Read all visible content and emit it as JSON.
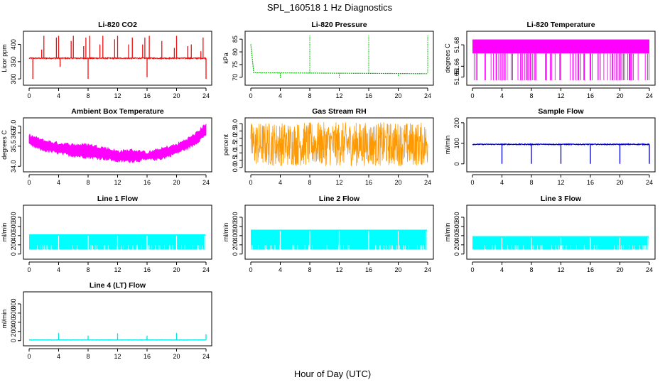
{
  "main_title": "SPL_160518  1 Hz Diagnostics",
  "xlabel": "Hour of Day (UTC)",
  "chart_data": [
    {
      "type": "line",
      "title": "Li-820 CO2",
      "ylabel": "Licor ppm",
      "xlim": [
        0,
        24
      ],
      "ylim": [
        290,
        430
      ],
      "yticks": [
        300,
        350,
        400
      ],
      "xticks": [
        0,
        4,
        8,
        12,
        16,
        20,
        24
      ],
      "color": "#ee1111",
      "series": [
        {
          "name": "",
          "baseline": 360,
          "noise": 3,
          "spikes": [
            [
              0.5,
              300
            ],
            [
              1.7,
              385
            ],
            [
              2,
              425
            ],
            [
              3.7,
              420
            ],
            [
              4,
              425
            ],
            [
              4.2,
              335
            ],
            [
              5.7,
              410
            ],
            [
              6,
              425
            ],
            [
              7.4,
              395
            ],
            [
              7.7,
              420
            ],
            [
              8,
              300
            ],
            [
              8.2,
              425
            ],
            [
              9.6,
              400
            ],
            [
              10,
              425
            ],
            [
              11.6,
              415
            ],
            [
              12,
              425
            ],
            [
              13.5,
              400
            ],
            [
              14,
              420
            ],
            [
              15.4,
              400
            ],
            [
              15.7,
              420
            ],
            [
              16,
              305
            ],
            [
              16.3,
              425
            ],
            [
              18,
              410
            ],
            [
              19.7,
              390
            ],
            [
              20,
              425
            ],
            [
              21.5,
              395
            ],
            [
              22,
              400
            ],
            [
              23.3,
              380
            ],
            [
              23.6,
              420
            ],
            [
              24,
              300
            ]
          ]
        }
      ]
    },
    {
      "type": "line",
      "title": "Li-820 Pressure",
      "ylabel": "kPa",
      "xlim": [
        0,
        24
      ],
      "ylim": [
        68,
        87
      ],
      "yticks": [
        70,
        75,
        80,
        85
      ],
      "xticks": [
        0,
        4,
        8,
        12,
        16,
        20,
        24
      ],
      "color": "#00bb00",
      "series": [
        {
          "name": "",
          "start": [
            0.0,
            83
          ],
          "trend": [
            [
              0.4,
              71.8
            ],
            [
              24,
              71.4
            ]
          ],
          "spikes": [
            [
              4,
              69.5
            ],
            [
              8,
              86.5
            ],
            [
              12,
              69.5
            ],
            [
              16,
              86.5
            ],
            [
              20,
              70.3
            ],
            [
              24,
              86.5
            ]
          ]
        }
      ]
    },
    {
      "type": "line",
      "title": "Li-820 Temperature",
      "ylabel": "degrees C",
      "xlim": [
        0,
        24
      ],
      "ylim": [
        51.645,
        51.69
      ],
      "yticks": [
        51.65,
        51.66,
        51.68
      ],
      "xticks": [
        0,
        4,
        8,
        12,
        16,
        20,
        24
      ],
      "color": "#ff00ff",
      "series": [
        {
          "name": "",
          "high": 51.685,
          "mid": 51.672,
          "low": 51.647
        }
      ]
    },
    {
      "type": "line",
      "title": "Ambient Box Temperature",
      "ylabel": "degrees C",
      "xlim": [
        0,
        24
      ],
      "ylim": [
        33.8,
        37.4
      ],
      "yticks": [
        34.0,
        35.5,
        36.5,
        37.0
      ],
      "ytick_labels": [
        "34.0",
        "35.5",
        "36.5",
        "37.0"
      ],
      "xticks": [
        0,
        4,
        8,
        12,
        16,
        20,
        24
      ],
      "color": "#ff00ff",
      "series": [
        {
          "name": "",
          "x": [
            0,
            2,
            4,
            6,
            8,
            10,
            12,
            14,
            16,
            18,
            20,
            22,
            23,
            24
          ],
          "upper": [
            36.3,
            35.9,
            35.7,
            35.6,
            35.6,
            35.4,
            35.1,
            35.2,
            35.0,
            35.3,
            35.6,
            36.2,
            36.6,
            37.2
          ],
          "lower": [
            35.6,
            35.2,
            35.0,
            34.8,
            34.7,
            34.6,
            34.4,
            34.4,
            34.5,
            34.6,
            35.0,
            35.5,
            35.9,
            36.4
          ]
        }
      ]
    },
    {
      "type": "line",
      "title": "Gas Stream RH",
      "ylabel": "percent",
      "xlim": [
        0,
        24
      ],
      "ylim": [
        -0.1,
        3.2
      ],
      "yticks": [
        0.0,
        0.5,
        1.0,
        1.5,
        2.0,
        2.5,
        3.0
      ],
      "ytick_labels": [
        "0.0",
        "0.5",
        "1.0",
        "1.5",
        "2.0",
        "2.5",
        "3.0"
      ],
      "xticks": [
        0,
        4,
        8,
        12,
        16,
        20,
        24
      ],
      "color": "#ff9900",
      "series": [
        {
          "name": "",
          "mean": 1.6,
          "min": 0.1,
          "max": 3.1
        }
      ]
    },
    {
      "type": "line",
      "title": "Sample Flow",
      "ylabel": "ml/min",
      "xlim": [
        0,
        24
      ],
      "ylim": [
        -25,
        210
      ],
      "yticks": [
        0,
        100,
        200
      ],
      "xticks": [
        0,
        4,
        8,
        12,
        16,
        20,
        24
      ],
      "color": "#0000dd",
      "series": [
        {
          "name": "",
          "baseline": 95,
          "spikes": [
            [
              4,
              0
            ],
            [
              8,
              0
            ],
            [
              12,
              0
            ],
            [
              16,
              0
            ],
            [
              20,
              0
            ],
            [
              24,
              0
            ]
          ]
        }
      ]
    },
    {
      "type": "area",
      "title": "Line 1 Flow",
      "ylabel": "ml/min",
      "xlim": [
        0,
        24
      ],
      "ylim": [
        -50,
        1000
      ],
      "yticks": [
        0,
        200,
        400,
        600,
        800
      ],
      "xticks": [
        0,
        4,
        8,
        12,
        16,
        20,
        24
      ],
      "color": "#00ffff",
      "series": [
        {
          "name": "",
          "top": 430,
          "bottom": 100,
          "gaps": [
            4,
            8,
            12,
            16,
            20,
            23.8
          ]
        }
      ]
    },
    {
      "type": "area",
      "title": "Line 2 Flow",
      "ylabel": "ml/min",
      "xlim": [
        0,
        24
      ],
      "ylim": [
        -50,
        1000
      ],
      "yticks": [
        0,
        200,
        400,
        600,
        800
      ],
      "xticks": [
        0,
        4,
        8,
        12,
        16,
        20,
        24
      ],
      "color": "#00ffff",
      "series": [
        {
          "name": "",
          "top": 530,
          "bottom": 100,
          "gaps": [
            4,
            8,
            12,
            16,
            20,
            23.8
          ]
        }
      ]
    },
    {
      "type": "area",
      "title": "Line 3 Flow",
      "ylabel": "ml/min",
      "xlim": [
        0,
        24
      ],
      "ylim": [
        -50,
        1000
      ],
      "yticks": [
        0,
        200,
        400,
        600,
        800
      ],
      "xticks": [
        0,
        4,
        8,
        12,
        16,
        20,
        24
      ],
      "color": "#00ffff",
      "series": [
        {
          "name": "",
          "top": 390,
          "bottom": 100,
          "gaps": [
            4,
            8,
            12,
            16,
            20,
            23.8
          ]
        }
      ]
    },
    {
      "type": "line",
      "title": "Line 4 (LT) Flow",
      "ylabel": "ml/min",
      "xlim": [
        0,
        24
      ],
      "ylim": [
        -50,
        1000
      ],
      "yticks": [
        0,
        200,
        400,
        600,
        800
      ],
      "xticks": [
        0,
        4,
        8,
        12,
        16,
        20,
        24
      ],
      "color": "#00e5e5",
      "series": [
        {
          "name": "",
          "baseline": 15,
          "spikes": [
            [
              4,
              170
            ],
            [
              8,
              110
            ],
            [
              12,
              160
            ],
            [
              16,
              110
            ],
            [
              20,
              170
            ],
            [
              24,
              140
            ]
          ]
        }
      ]
    }
  ]
}
